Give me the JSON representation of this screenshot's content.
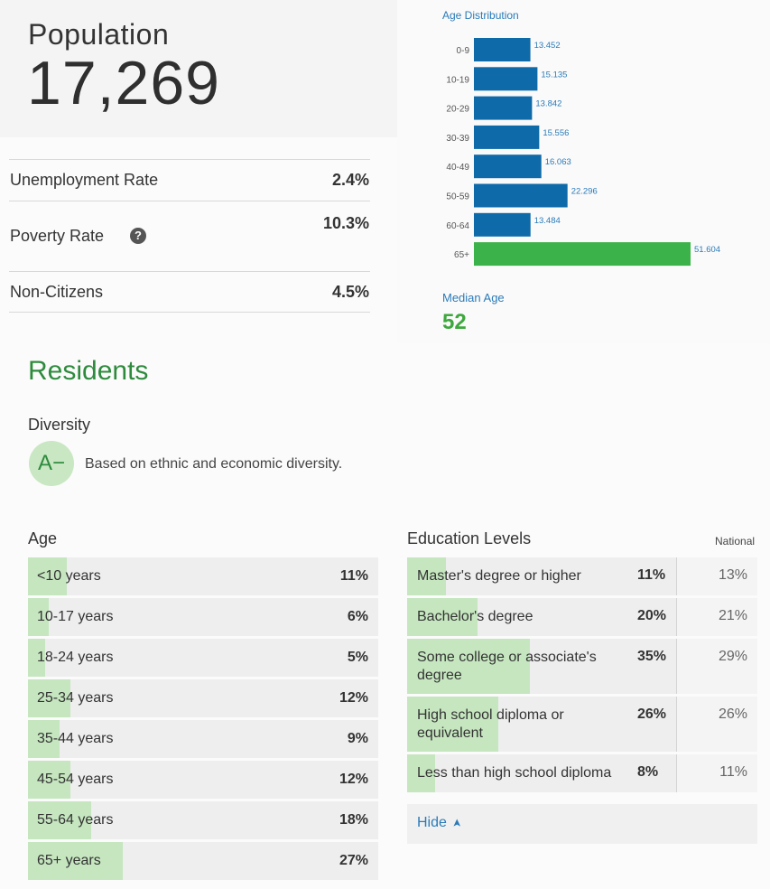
{
  "population": {
    "title": "Population",
    "value": "17,269"
  },
  "stats": [
    {
      "label": "Unemployment Rate",
      "value": "2.4%"
    },
    {
      "label": "Poverty Rate",
      "value": "10.3%"
    },
    {
      "label": "Non-Citizens",
      "value": "4.5%"
    }
  ],
  "help_icon": "question-circle-icon",
  "chart_data": {
    "type": "bar",
    "orientation": "horizontal",
    "title": "Age Distribution",
    "categories": [
      "0-9",
      "10-19",
      "20-29",
      "30-39",
      "40-49",
      "50-59",
      "60-64",
      "65+"
    ],
    "values": [
      13.452,
      15.135,
      13.842,
      15.556,
      16.063,
      22.296,
      13.484,
      51.604
    ],
    "value_labels": [
      "13.452",
      "15.135",
      "13.842",
      "15.556",
      "16.063",
      "22.296",
      "13.484",
      "51.604"
    ],
    "colors": [
      "#0e6aa8",
      "#0e6aa8",
      "#0e6aa8",
      "#0e6aa8",
      "#0e6aa8",
      "#0e6aa8",
      "#0e6aa8",
      "#3cb34a"
    ],
    "xlim": [
      0,
      51.604
    ],
    "grid": false
  },
  "median_age": {
    "label": "Median Age",
    "value": "52"
  },
  "residents": {
    "title": "Residents",
    "diversity": {
      "title": "Diversity",
      "grade": "A−",
      "description": "Based on ethnic and economic diversity."
    },
    "age": {
      "title": "Age",
      "rows": [
        {
          "label": "<10 years",
          "value": "11%",
          "pct": 11
        },
        {
          "label": "10-17 years",
          "value": "6%",
          "pct": 6
        },
        {
          "label": "18-24 years",
          "value": "5%",
          "pct": 5
        },
        {
          "label": "25-34 years",
          "value": "12%",
          "pct": 12
        },
        {
          "label": "35-44 years",
          "value": "9%",
          "pct": 9
        },
        {
          "label": "45-54 years",
          "value": "12%",
          "pct": 12
        },
        {
          "label": "55-64 years",
          "value": "18%",
          "pct": 18
        },
        {
          "label": "65+ years",
          "value": "27%",
          "pct": 27
        }
      ]
    },
    "education": {
      "title": "Education Levels",
      "national_header": "National",
      "rows": [
        {
          "label": "Master's degree or higher",
          "value": "11%",
          "national": "13%",
          "pct": 11
        },
        {
          "label": "Bachelor's degree",
          "value": "20%",
          "national": "21%",
          "pct": 20
        },
        {
          "label": "Some college or associate's degree",
          "value": "35%",
          "national": "29%",
          "pct": 35
        },
        {
          "label": "High school diploma or equivalent",
          "value": "26%",
          "national": "26%",
          "pct": 26
        },
        {
          "label": "Less than high school diploma",
          "value": "8%",
          "national": "11%",
          "pct": 8
        }
      ],
      "hide_label": "Hide",
      "hide_icon": "chevron-up-icon"
    }
  },
  "colors": {
    "bar_blue": "#0e6aa8",
    "bar_green": "#3cb34a",
    "accent_green": "#2e8b3e",
    "link_blue": "#2b7bb9",
    "fill_green": "#c5e6bf"
  }
}
